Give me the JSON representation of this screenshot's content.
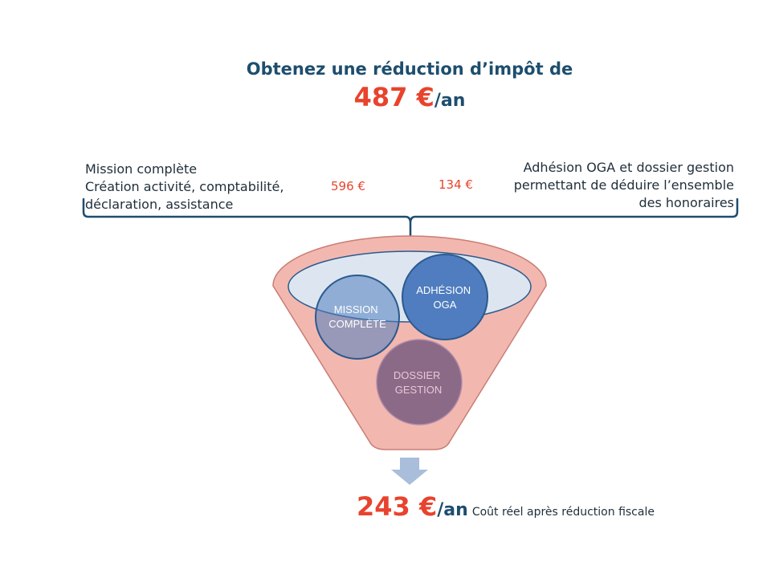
{
  "headline": "Obtenez une réduction d’impôt de",
  "reduction": {
    "amount": "487 €",
    "unit": "/an"
  },
  "left": {
    "lines": [
      "Mission complète",
      "Création activité, comptabilité,",
      "déclaration, assistance"
    ],
    "price": "596 €"
  },
  "right": {
    "lines": [
      "Adhésion OGA et dossier gestion",
      "permettant de déduire l’ensemble",
      "des honoraires"
    ],
    "price": "134 €"
  },
  "circles": {
    "mission": [
      "MISSION",
      "COMPLÈTE"
    ],
    "oga": [
      "ADHÉSION",
      "OGA"
    ],
    "dossier": [
      "DOSSIER",
      "GESTION"
    ]
  },
  "result": {
    "amount": "243 €",
    "unit": "/an",
    "note": "Coût réel après réduction fiscale"
  },
  "colors": {
    "title": "#1d4e6e",
    "accent_red": "#e8432d",
    "funnel_fill": "#f2b8b0",
    "funnel_stroke": "#c97d74",
    "rim_fill": "#dde6f0",
    "circle_blue": "#4f7dbf",
    "circle_stroke": "#2c5a8e",
    "arrow": "#a9bedb"
  }
}
